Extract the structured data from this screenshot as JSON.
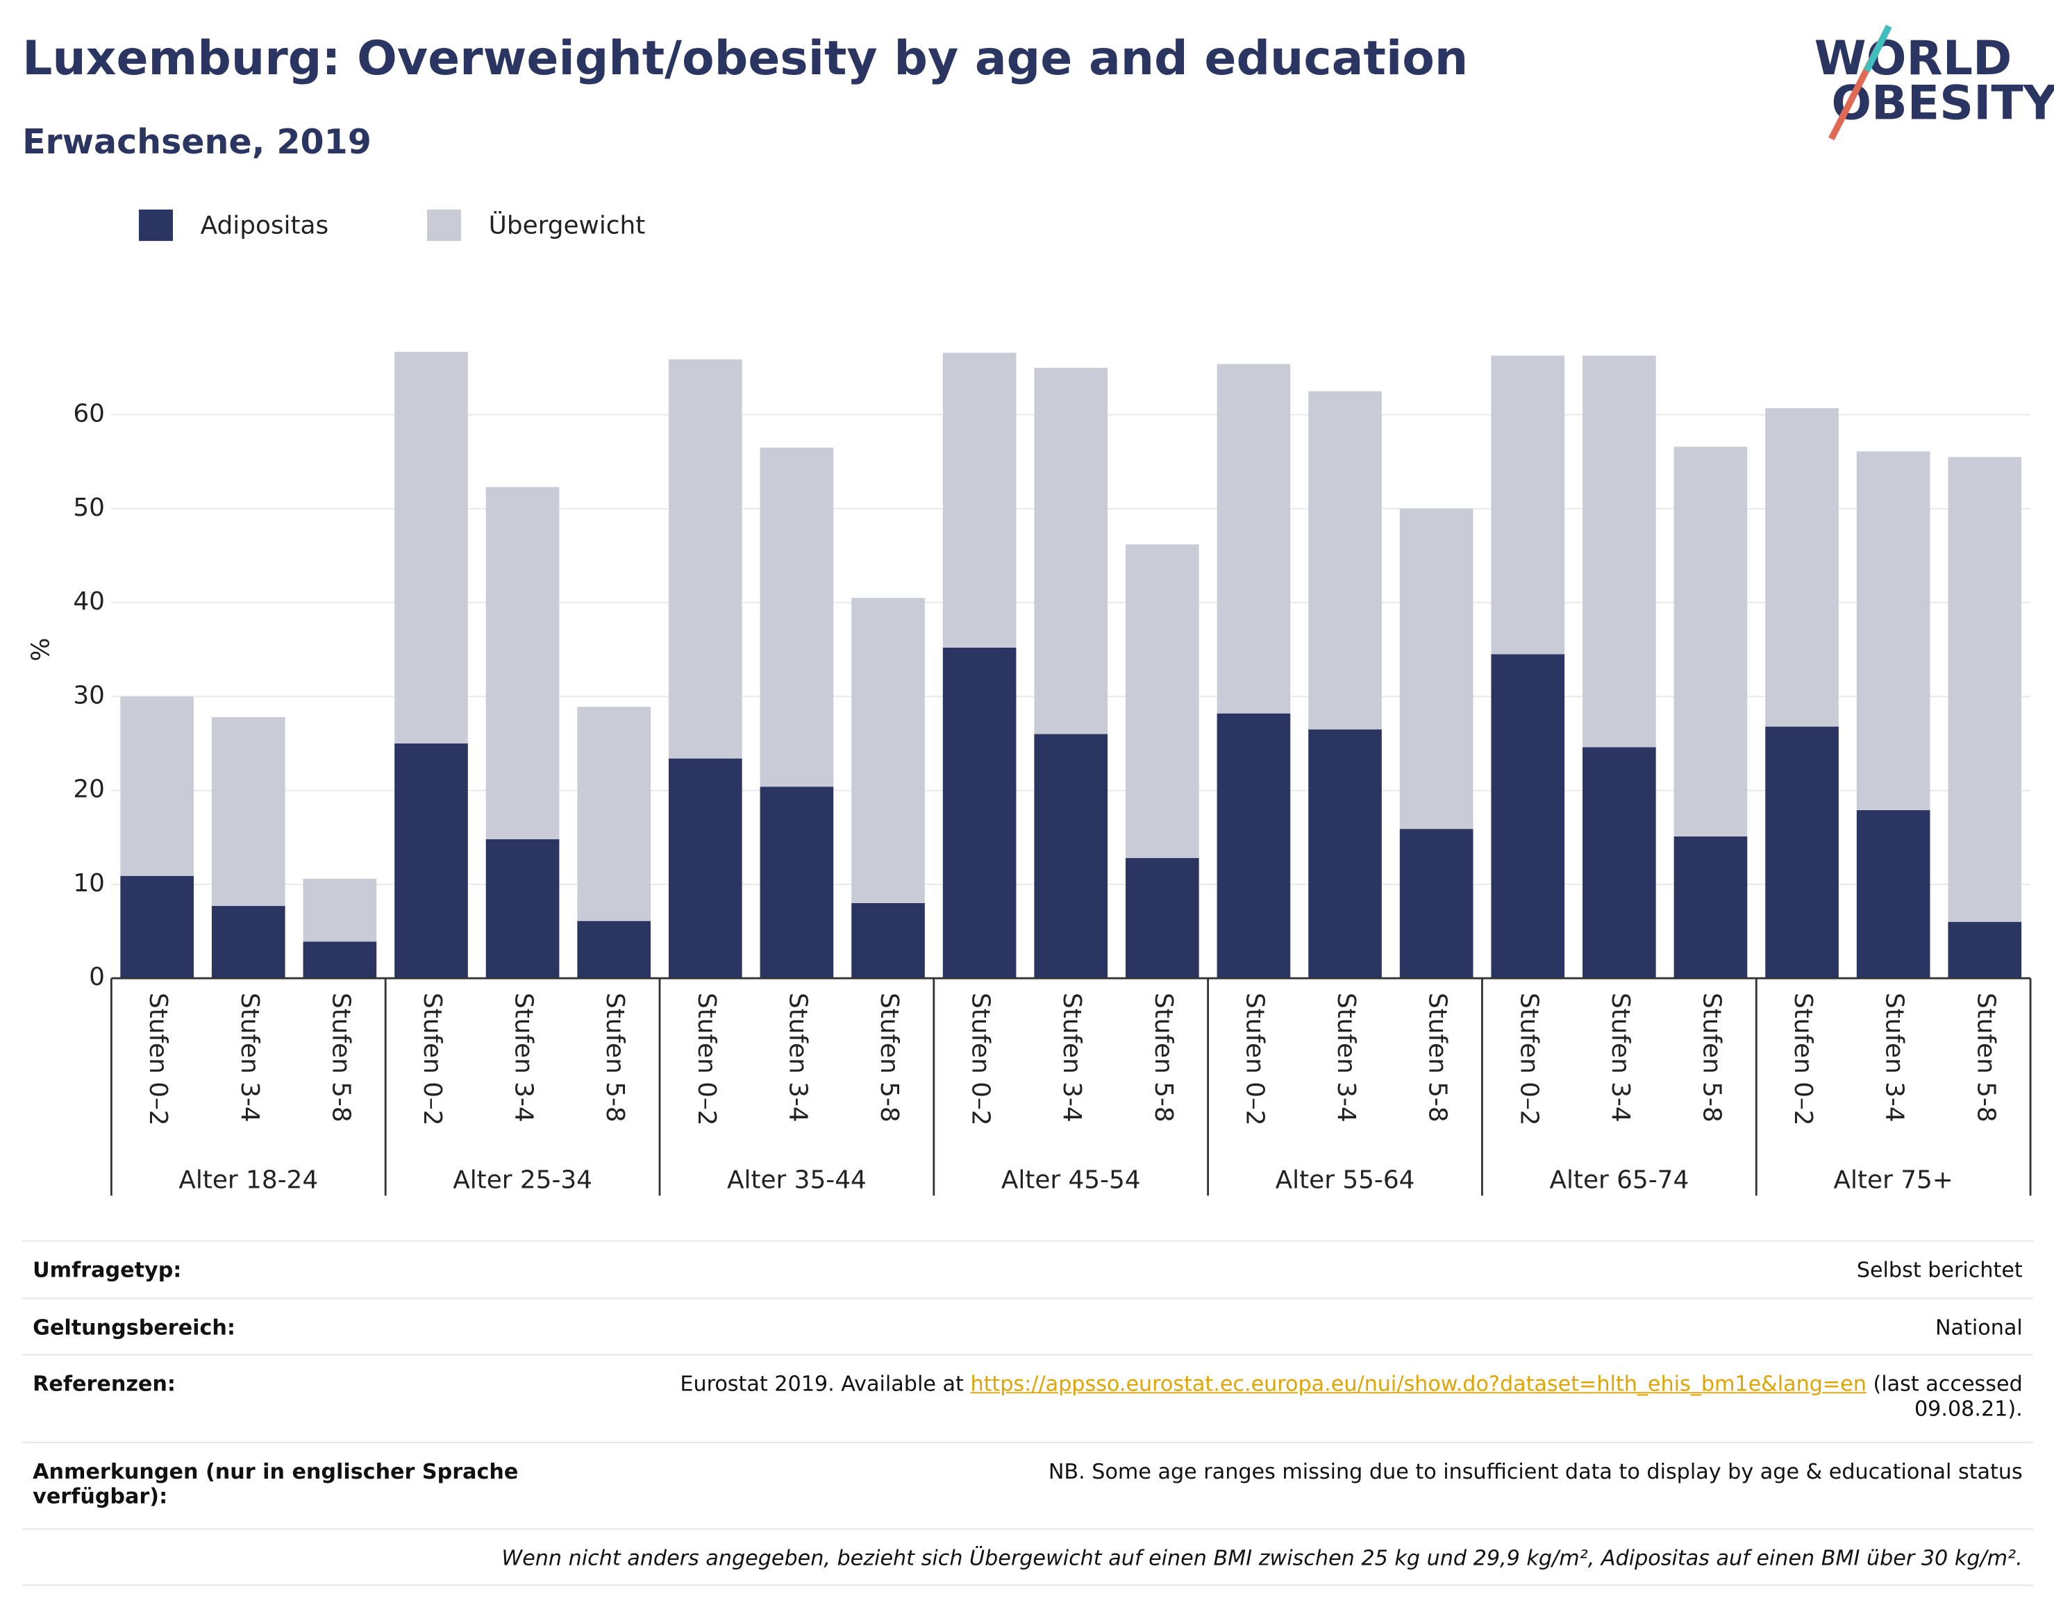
{
  "chart_data": {
    "type": "stacked_bar",
    "title": "Luxemburg: Overweight/obesity by age and education",
    "subtitle": "Erwachsene, 2019",
    "y_label": "%",
    "groups": [
      "Alter 18-24",
      "Alter 25-34",
      "Alter 35-44",
      "Alter 45-54",
      "Alter 55-64",
      "Alter 65-74",
      "Alter 75+"
    ],
    "categories": [
      "Stufen 0–2",
      "Stufen 3-4",
      "Stufen 5-8",
      "Stufen 0–2",
      "Stufen 3-4",
      "Stufen 5-8",
      "Stufen 0–2",
      "Stufen 3-4",
      "Stufen 5-8",
      "Stufen 0–2",
      "Stufen 3-4",
      "Stufen 5-8",
      "Stufen 0–2",
      "Stufen 3-4",
      "Stufen 5-8",
      "Stufen 0–2",
      "Stufen 3-4",
      "Stufen 5-8",
      "Stufen 0–2",
      "Stufen 3-4",
      "Stufen 5-8"
    ],
    "series": [
      {
        "name": "Adipositas",
        "color": "#2b3561",
        "values": [
          10.9,
          7.7,
          3.9,
          25.0,
          14.8,
          6.1,
          23.4,
          20.4,
          8.0,
          35.2,
          26.0,
          12.8,
          28.2,
          26.5,
          15.9,
          34.5,
          24.6,
          15.1,
          26.8,
          17.9,
          6.0
        ]
      },
      {
        "name": "Übergewicht",
        "color": "#c9cbd7",
        "values": [
          19.1,
          20.1,
          6.7,
          41.7,
          37.5,
          22.8,
          42.5,
          36.1,
          32.5,
          31.4,
          39.0,
          33.4,
          37.2,
          36.0,
          34.1,
          31.8,
          41.7,
          41.5,
          33.9,
          38.2,
          49.5
        ]
      }
    ],
    "ylim": [
      0,
      70
    ],
    "yticks": [
      0,
      10,
      20,
      30,
      40,
      50,
      60
    ],
    "grid": true,
    "legend": "top-left"
  },
  "logo": [
    "WORLD",
    "OBESITY"
  ],
  "footer": {
    "rows": [
      {
        "label": "Umfragetyp:",
        "value": "Selbst berichtet"
      },
      {
        "label": "Geltungsbereich:",
        "value": "National"
      },
      {
        "label": "Referenzen:",
        "text": "Eurostat 2019. Available at",
        "link": "https://appsso.eurostat.ec.europa.eu/nui/show.do?dataset=hlth_ehis_bm1e&lang=en",
        "tail": "(last accessed 09.08.21)."
      },
      {
        "label": "Anmerkungen (nur in englischer Sprache verfügbar):",
        "value": "NB. Some age ranges missing due to insufficient data to display by age & educational status"
      }
    ],
    "note": "Wenn nicht anders angegeben, bezieht sich Übergewicht auf einen BMI zwischen 25 kg und 29,9 kg/m², Adipositas auf einen BMI über 30 kg/m²."
  }
}
